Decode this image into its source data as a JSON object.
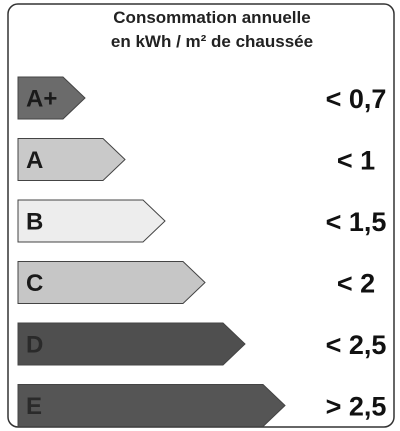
{
  "header": {
    "title": [
      "Consommation annuelle",
      "en kWh / m² de chaussée"
    ]
  },
  "classes": [
    {
      "label": "A+",
      "threshold": "< 0,7",
      "color": "#6b6b6b"
    },
    {
      "label": "A",
      "threshold": "< 1",
      "color": "#c9c9c9"
    },
    {
      "label": "B",
      "threshold": "< 1,5",
      "color": "#ededed"
    },
    {
      "label": "C",
      "threshold": "< 2",
      "color": "#c6c6c6"
    },
    {
      "label": "D",
      "threshold": "< 2,5",
      "color": "#4f4f4f"
    },
    {
      "label": "E",
      "threshold": "> 2,5",
      "color": "#555555"
    }
  ]
}
